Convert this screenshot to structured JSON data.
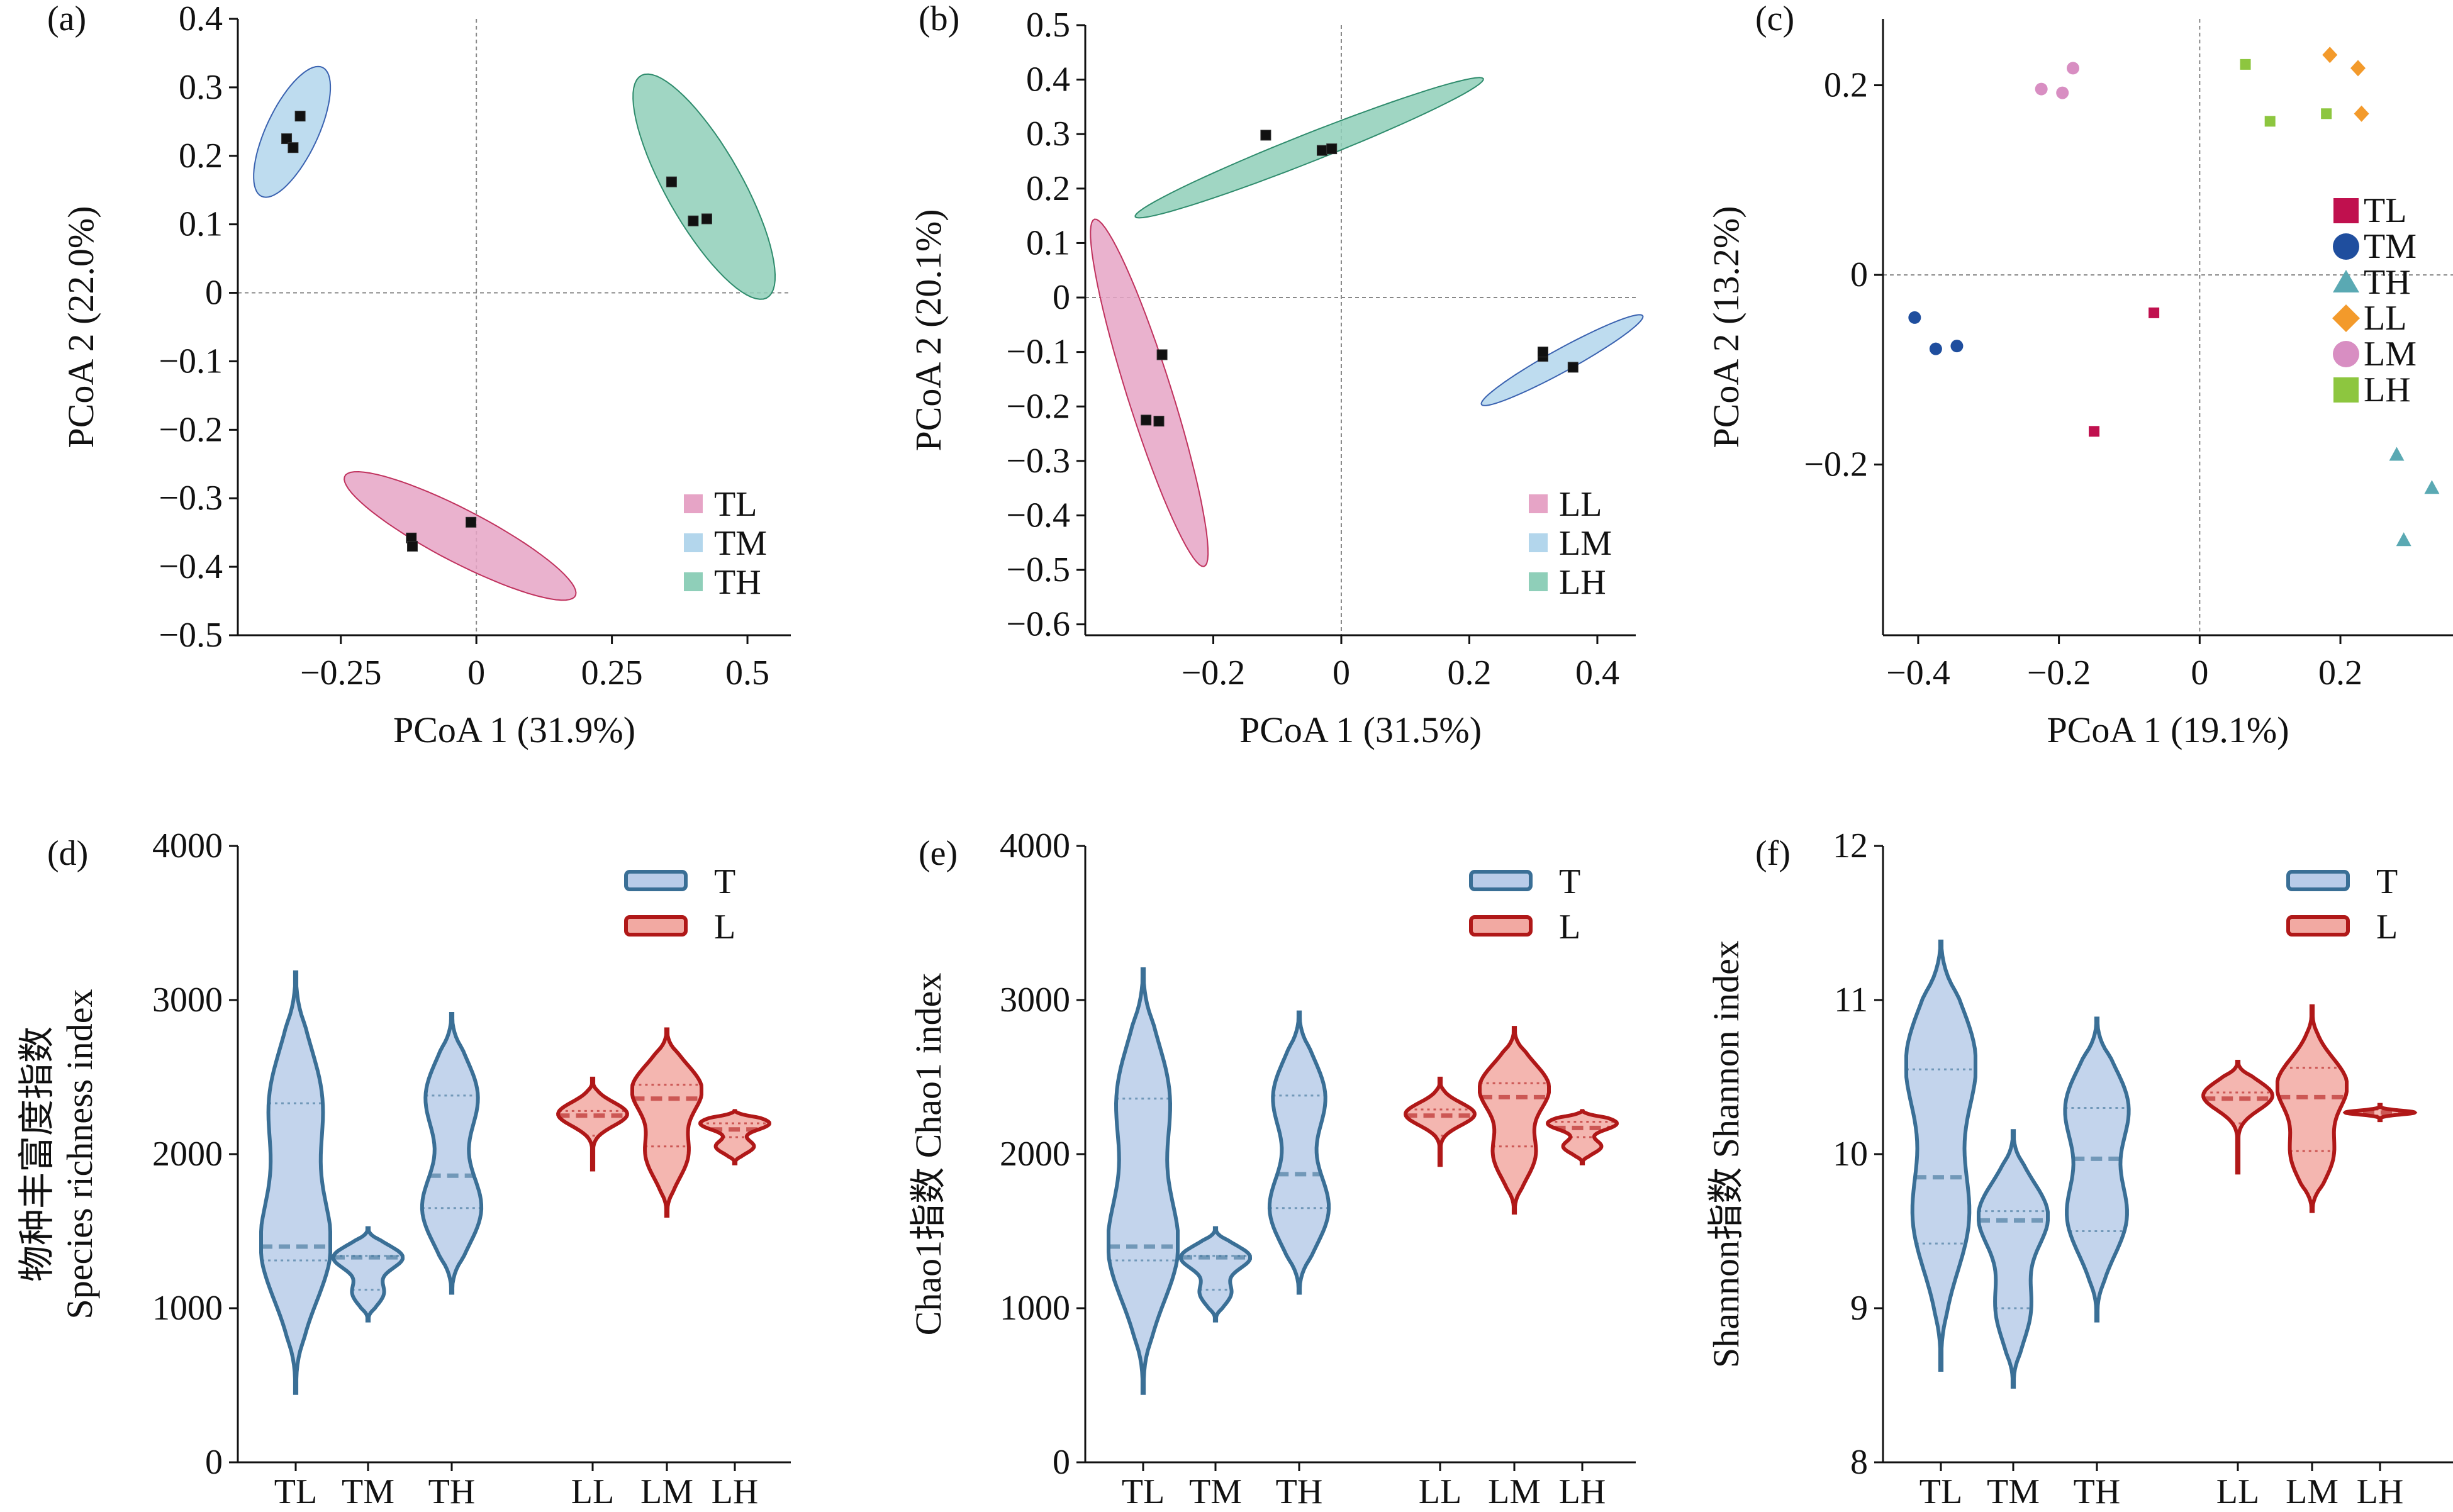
{
  "colors": {
    "TL_ellipse": "#e6a4c6",
    "TM_ellipse": "#b3d6ec",
    "TH_ellipse": "#8fcfb9",
    "LL_ellipse": "#e6a4c6",
    "LM_ellipse": "#b3d6ec",
    "LH_ellipse": "#8fcfb9",
    "TL_c": "#c0104e",
    "TM_c": "#1f4e9e",
    "TH_c": "#5aa9b3",
    "LL_c": "#f39a2b",
    "LM_c": "#d88ec2",
    "LH_c": "#8dc63f",
    "violin_T_fill": "#b9cce9",
    "violin_T_stroke": "#3a6f96",
    "violin_L_fill": "#f2a9a2",
    "violin_L_stroke": "#b01818"
  },
  "chart_data": [
    {
      "panel": "(a)",
      "type": "scatter",
      "xlabel": "PCoA 1 (31.9%)",
      "ylabel": "PCoA 2 (22.0%)",
      "xlim": [
        -0.44,
        0.58
      ],
      "ylim": [
        -0.5,
        0.4
      ],
      "xticks": [
        -0.25,
        0,
        0.25,
        0.5
      ],
      "xtick_labels": [
        "−0.25",
        "0",
        "0.25",
        "0.5"
      ],
      "yticks": [
        -0.5,
        -0.4,
        -0.3,
        -0.2,
        -0.1,
        0,
        0.1,
        0.2,
        0.3,
        0.4
      ],
      "ytick_labels": [
        "−0.5",
        "−0.4",
        "−0.3",
        "−0.2",
        "−0.1",
        "0",
        "0.1",
        "0.2",
        "0.3",
        "0.4"
      ],
      "reference_lines": true,
      "groups": [
        {
          "name": "TL",
          "points": [
            [
              -0.12,
              -0.358
            ],
            [
              -0.118,
              -0.37
            ],
            [
              -0.01,
              -0.335
            ]
          ],
          "ellipse": {
            "cx": -0.03,
            "cy": -0.355,
            "rx": 0.23,
            "ry": 0.04,
            "angle_deg": -22
          }
        },
        {
          "name": "TM",
          "points": [
            [
              -0.35,
              0.225
            ],
            [
              -0.338,
              0.212
            ],
            [
              -0.325,
              0.258
            ]
          ],
          "ellipse": {
            "cx": -0.34,
            "cy": 0.235,
            "rx": 0.11,
            "ry": 0.045,
            "angle_deg": 57
          }
        },
        {
          "name": "TH",
          "points": [
            [
              0.36,
              0.162
            ],
            [
              0.4,
              0.105
            ],
            [
              0.425,
              0.108
            ]
          ],
          "ellipse": {
            "cx": 0.42,
            "cy": 0.155,
            "rx": 0.2,
            "ry": 0.065,
            "angle_deg": -53
          }
        }
      ],
      "legend": [
        "TL",
        "TM",
        "TH"
      ],
      "legend_position": "bottom-right"
    },
    {
      "panel": "(b)",
      "type": "scatter",
      "xlabel": "PCoA 1 (31.5%)",
      "ylabel": "PCoA 2 (20.1%)",
      "xlim": [
        -0.4,
        0.46
      ],
      "ylim": [
        -0.62,
        0.5
      ],
      "xticks": [
        -0.2,
        0,
        0.2,
        0.4
      ],
      "xtick_labels": [
        "−0.2",
        "0",
        "0.2",
        "0.4"
      ],
      "yticks": [
        -0.6,
        -0.5,
        -0.4,
        -0.3,
        -0.2,
        -0.1,
        0,
        0.1,
        0.2,
        0.3,
        0.4,
        0.5
      ],
      "ytick_labels": [
        "−0.6",
        "−0.5",
        "−0.4",
        "−0.3",
        "−0.2",
        "−0.1",
        "0",
        "0.1",
        "0.2",
        "0.3",
        "0.4",
        "0.5"
      ],
      "reference_lines": true,
      "groups": [
        {
          "name": "LL",
          "points": [
            [
              -0.28,
              -0.105
            ],
            [
              -0.305,
              -0.225
            ],
            [
              -0.285,
              -0.227
            ]
          ],
          "ellipse": {
            "cx": -0.3,
            "cy": -0.175,
            "rx": 0.33,
            "ry": 0.035,
            "angle_deg": -75
          }
        },
        {
          "name": "LM",
          "points": [
            [
              0.315,
              -0.108
            ],
            [
              0.315,
              -0.1
            ],
            [
              0.362,
              -0.128
            ]
          ],
          "ellipse": {
            "cx": 0.345,
            "cy": -0.115,
            "rx": 0.15,
            "ry": 0.02,
            "angle_deg": 33
          }
        },
        {
          "name": "LH",
          "points": [
            [
              -0.118,
              0.298
            ],
            [
              -0.03,
              0.27
            ],
            [
              -0.015,
              0.273
            ]
          ],
          "ellipse": {
            "cx": -0.05,
            "cy": 0.275,
            "rx": 0.3,
            "ry": 0.025,
            "angle_deg": 25
          }
        }
      ],
      "legend": [
        "LL",
        "LM",
        "LH"
      ],
      "legend_position": "bottom-right"
    },
    {
      "panel": "(c)",
      "type": "scatter",
      "xlabel": "PCoA 1 (19.1%)",
      "ylabel": "PCoA 2 (13.2%)",
      "xlim": [
        -0.45,
        0.36
      ],
      "ylim": [
        -0.38,
        0.27
      ],
      "xticks": [
        -0.4,
        -0.2,
        0,
        0.2
      ],
      "xtick_labels": [
        "−0.4",
        "−0.2",
        "0",
        "0.2"
      ],
      "yticks": [
        -0.2,
        0,
        0.2
      ],
      "ytick_labels": [
        "−0.2",
        "0",
        "0.2"
      ],
      "reference_lines": true,
      "groups": [
        {
          "name": "TL",
          "marker": "square",
          "points": [
            [
              -0.065,
              -0.04
            ],
            [
              -0.15,
              -0.165
            ]
          ]
        },
        {
          "name": "TM",
          "marker": "circle",
          "points": [
            [
              -0.405,
              -0.045
            ],
            [
              -0.375,
              -0.078
            ],
            [
              -0.345,
              -0.075
            ]
          ]
        },
        {
          "name": "TH",
          "marker": "triangle",
          "points": [
            [
              0.28,
              -0.19
            ],
            [
              0.33,
              -0.225
            ],
            [
              0.29,
              -0.28
            ]
          ]
        },
        {
          "name": "LL",
          "marker": "diamond",
          "points": [
            [
              0.185,
              0.232
            ],
            [
              0.225,
              0.218
            ],
            [
              0.23,
              0.17
            ]
          ]
        },
        {
          "name": "LM",
          "marker": "circle",
          "points": [
            [
              -0.225,
              0.196
            ],
            [
              -0.195,
              0.192
            ],
            [
              -0.18,
              0.218
            ]
          ]
        },
        {
          "name": "LH",
          "marker": "square",
          "points": [
            [
              0.065,
              0.222
            ],
            [
              0.1,
              0.162
            ],
            [
              0.18,
              0.17
            ]
          ]
        }
      ],
      "legend": [
        "TL",
        "TM",
        "TH",
        "LL",
        "LM",
        "LH"
      ],
      "legend_position": "right"
    },
    {
      "panel": "(d)",
      "type": "violin",
      "ylabel_lines": [
        "物种丰富度指数",
        "Species richness index"
      ],
      "categories": [
        "TL",
        "TM",
        "TH",
        "LL",
        "LM",
        "LH"
      ],
      "ylim": [
        0,
        4000
      ],
      "yticks": [
        0,
        1000,
        2000,
        3000,
        4000
      ],
      "ytick_labels": [
        "0",
        "1000",
        "2000",
        "3000",
        "4000"
      ],
      "legend": [
        "T",
        "L"
      ],
      "legend_position": "top-right",
      "violins": [
        {
          "cat": "TL",
          "group": "T",
          "min": 450,
          "max": 3180,
          "median": 1400,
          "q1": 1310,
          "q3": 2330,
          "peaks": [
            [
              1400,
              1
            ],
            [
              2330,
              0.75
            ]
          ]
        },
        {
          "cat": "TM",
          "group": "T",
          "min": 920,
          "max": 1520,
          "median": 1330,
          "q1": 1120,
          "q3": 1340,
          "peaks": [
            [
              1330,
              1
            ],
            [
              1100,
              0.45
            ]
          ]
        },
        {
          "cat": "TH",
          "group": "T",
          "min": 1100,
          "max": 2910,
          "median": 1860,
          "q1": 1650,
          "q3": 2380,
          "peaks": [
            [
              1650,
              0.85
            ],
            [
              2370,
              0.75
            ]
          ]
        },
        {
          "cat": "LL",
          "group": "L",
          "min": 1900,
          "max": 2490,
          "median": 2250,
          "q1": 2120,
          "q3": 2280,
          "peaks": [
            [
              2260,
              1
            ]
          ]
        },
        {
          "cat": "LM",
          "group": "L",
          "min": 1600,
          "max": 2810,
          "median": 2360,
          "q1": 2050,
          "q3": 2450,
          "peaks": [
            [
              2420,
              1
            ],
            [
              2000,
              0.6
            ]
          ]
        },
        {
          "cat": "LH",
          "group": "L",
          "min": 1940,
          "max": 2280,
          "median": 2160,
          "q1": 2110,
          "q3": 2200,
          "peaks": [
            [
              2200,
              1
            ],
            [
              2050,
              0.55
            ]
          ]
        }
      ]
    },
    {
      "panel": "(e)",
      "type": "violin",
      "ylabel_lines": [
        "Chao1指数 Chao1 index"
      ],
      "categories": [
        "TL",
        "TM",
        "TH",
        "LL",
        "LM",
        "LH"
      ],
      "ylim": [
        0,
        4000
      ],
      "yticks": [
        0,
        1000,
        2000,
        3000,
        4000
      ],
      "ytick_labels": [
        "0",
        "1000",
        "2000",
        "3000",
        "4000"
      ],
      "legend": [
        "T",
        "L"
      ],
      "legend_position": "top-right",
      "violins": [
        {
          "cat": "TL",
          "group": "T",
          "min": 450,
          "max": 3200,
          "median": 1400,
          "q1": 1310,
          "q3": 2360,
          "peaks": [
            [
              1400,
              1
            ],
            [
              2360,
              0.75
            ]
          ]
        },
        {
          "cat": "TM",
          "group": "T",
          "min": 920,
          "max": 1520,
          "median": 1330,
          "q1": 1120,
          "q3": 1340,
          "peaks": [
            [
              1330,
              1
            ],
            [
              1100,
              0.45
            ]
          ]
        },
        {
          "cat": "TH",
          "group": "T",
          "min": 1100,
          "max": 2920,
          "median": 1870,
          "q1": 1650,
          "q3": 2380,
          "peaks": [
            [
              1650,
              0.85
            ],
            [
              2370,
              0.75
            ]
          ]
        },
        {
          "cat": "LL",
          "group": "L",
          "min": 1930,
          "max": 2490,
          "median": 2250,
          "q1": 2120,
          "q3": 2290,
          "peaks": [
            [
              2260,
              1
            ]
          ]
        },
        {
          "cat": "LM",
          "group": "L",
          "min": 1620,
          "max": 2820,
          "median": 2370,
          "q1": 2050,
          "q3": 2460,
          "peaks": [
            [
              2430,
              1
            ],
            [
              2000,
              0.6
            ]
          ]
        },
        {
          "cat": "LH",
          "group": "L",
          "min": 1940,
          "max": 2280,
          "median": 2170,
          "q1": 2110,
          "q3": 2210,
          "peaks": [
            [
              2200,
              1
            ],
            [
              2050,
              0.55
            ]
          ]
        }
      ]
    },
    {
      "panel": "(f)",
      "type": "violin",
      "ylabel_lines": [
        "Shannon指数 Shannon index"
      ],
      "categories": [
        "TL",
        "TM",
        "TH",
        "LL",
        "LM",
        "LH"
      ],
      "ylim": [
        8,
        12
      ],
      "yticks": [
        8,
        9,
        10,
        11,
        12
      ],
      "ytick_labels": [
        "8",
        "9",
        "10",
        "11",
        "12"
      ],
      "legend": [
        "T",
        "L"
      ],
      "legend_position": "top-right",
      "violins": [
        {
          "cat": "TL",
          "group": "T",
          "min": 8.6,
          "max": 11.38,
          "median": 9.85,
          "q1": 9.42,
          "q3": 10.55,
          "peaks": [
            [
              9.6,
              0.8
            ],
            [
              10.6,
              1
            ]
          ]
        },
        {
          "cat": "TM",
          "group": "T",
          "min": 8.49,
          "max": 10.15,
          "median": 9.57,
          "q1": 9.0,
          "q3": 9.63,
          "peaks": [
            [
              9.6,
              1
            ],
            [
              9.0,
              0.5
            ]
          ]
        },
        {
          "cat": "TH",
          "group": "T",
          "min": 8.92,
          "max": 10.88,
          "median": 9.97,
          "q1": 9.5,
          "q3": 10.3,
          "peaks": [
            [
              9.6,
              0.85
            ],
            [
              10.3,
              0.9
            ]
          ]
        },
        {
          "cat": "LL",
          "group": "L",
          "min": 9.88,
          "max": 10.6,
          "median": 10.36,
          "q1": 10.2,
          "q3": 10.4,
          "peaks": [
            [
              10.38,
              1
            ]
          ]
        },
        {
          "cat": "LM",
          "group": "L",
          "min": 9.63,
          "max": 10.96,
          "median": 10.37,
          "q1": 10.02,
          "q3": 10.56,
          "peaks": [
            [
              10.45,
              1
            ],
            [
              10.0,
              0.6
            ]
          ]
        },
        {
          "cat": "LH",
          "group": "L",
          "min": 10.22,
          "max": 10.32,
          "median": 10.27,
          "q1": 10.25,
          "q3": 10.29,
          "peaks": [
            [
              10.27,
              1
            ]
          ]
        }
      ]
    }
  ]
}
